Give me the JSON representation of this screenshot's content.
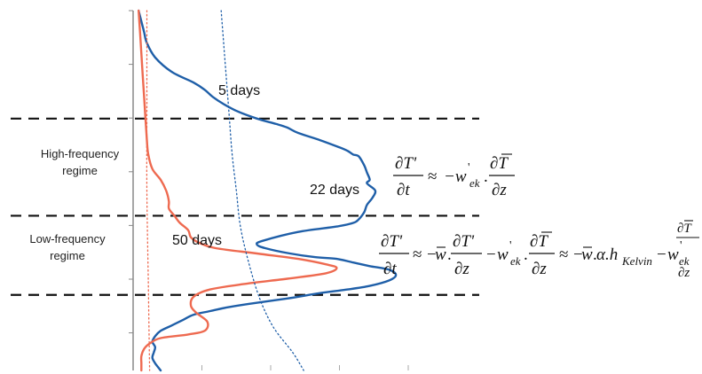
{
  "chart_data": {
    "type": "line",
    "title": "",
    "xlabel": "",
    "ylabel": "",
    "xlim": [
      0,
      1
    ],
    "ylim": [
      0,
      1
    ],
    "x_ticks": [
      0.25,
      0.5,
      0.75,
      1.0
    ],
    "grid": false,
    "series": [
      {
        "name": "",
        "color": "#1f5fa8",
        "style": "solid",
        "points": [
          [
            0.02,
            1.0
          ],
          [
            0.03,
            0.97
          ],
          [
            0.04,
            0.94
          ],
          [
            0.05,
            0.91
          ],
          [
            0.08,
            0.87
          ],
          [
            0.14,
            0.83
          ],
          [
            0.22,
            0.8
          ],
          [
            0.26,
            0.78
          ],
          [
            0.29,
            0.76
          ],
          [
            0.33,
            0.74
          ],
          [
            0.38,
            0.72
          ],
          [
            0.45,
            0.7
          ],
          [
            0.52,
            0.685
          ],
          [
            0.56,
            0.675
          ],
          [
            0.6,
            0.66
          ],
          [
            0.68,
            0.64
          ],
          [
            0.75,
            0.62
          ],
          [
            0.78,
            0.61
          ],
          [
            0.8,
            0.6
          ],
          [
            0.82,
            0.595
          ],
          [
            0.84,
            0.57
          ],
          [
            0.85,
            0.55
          ],
          [
            0.86,
            0.53
          ],
          [
            0.85,
            0.52
          ],
          [
            0.88,
            0.5
          ],
          [
            0.87,
            0.48
          ],
          [
            0.85,
            0.46
          ],
          [
            0.84,
            0.44
          ],
          [
            0.82,
            0.42
          ],
          [
            0.8,
            0.41
          ],
          [
            0.74,
            0.4
          ],
          [
            0.6,
            0.385
          ],
          [
            0.47,
            0.36
          ],
          [
            0.45,
            0.35
          ],
          [
            0.48,
            0.34
          ],
          [
            0.57,
            0.325
          ],
          [
            0.66,
            0.315
          ],
          [
            0.74,
            0.31
          ],
          [
            0.8,
            0.3
          ],
          [
            0.86,
            0.29
          ],
          [
            0.93,
            0.28
          ],
          [
            0.955,
            0.265
          ],
          [
            0.93,
            0.25
          ],
          [
            0.86,
            0.235
          ],
          [
            0.78,
            0.225
          ],
          [
            0.68,
            0.215
          ],
          [
            0.56,
            0.2
          ],
          [
            0.42,
            0.185
          ],
          [
            0.34,
            0.175
          ],
          [
            0.28,
            0.165
          ],
          [
            0.22,
            0.155
          ],
          [
            0.18,
            0.14
          ],
          [
            0.14,
            0.125
          ],
          [
            0.1,
            0.11
          ],
          [
            0.08,
            0.095
          ],
          [
            0.07,
            0.08
          ],
          [
            0.08,
            0.065
          ],
          [
            0.075,
            0.05
          ],
          [
            0.07,
            0.035
          ],
          [
            0.08,
            0.02
          ],
          [
            0.1,
            0.0
          ]
        ]
      },
      {
        "name": "",
        "color": "#ee6a50",
        "style": "solid",
        "points": [
          [
            0.02,
            1.0
          ],
          [
            0.025,
            0.94
          ],
          [
            0.03,
            0.88
          ],
          [
            0.035,
            0.82
          ],
          [
            0.04,
            0.76
          ],
          [
            0.045,
            0.7
          ],
          [
            0.05,
            0.64
          ],
          [
            0.055,
            0.6
          ],
          [
            0.07,
            0.56
          ],
          [
            0.1,
            0.53
          ],
          [
            0.12,
            0.5
          ],
          [
            0.13,
            0.47
          ],
          [
            0.13,
            0.45
          ],
          [
            0.15,
            0.43
          ],
          [
            0.17,
            0.41
          ],
          [
            0.2,
            0.39
          ],
          [
            0.21,
            0.37
          ],
          [
            0.24,
            0.355
          ],
          [
            0.3,
            0.34
          ],
          [
            0.45,
            0.325
          ],
          [
            0.6,
            0.31
          ],
          [
            0.7,
            0.295
          ],
          [
            0.74,
            0.285
          ],
          [
            0.7,
            0.27
          ],
          [
            0.56,
            0.255
          ],
          [
            0.4,
            0.24
          ],
          [
            0.28,
            0.225
          ],
          [
            0.22,
            0.205
          ],
          [
            0.21,
            0.18
          ],
          [
            0.23,
            0.16
          ],
          [
            0.27,
            0.135
          ],
          [
            0.26,
            0.11
          ],
          [
            0.2,
            0.1
          ],
          [
            0.1,
            0.09
          ],
          [
            0.06,
            0.075
          ],
          [
            0.04,
            0.06
          ],
          [
            0.03,
            0.04
          ],
          [
            0.03,
            0.02
          ],
          [
            0.03,
            0.0
          ]
        ]
      },
      {
        "name": "",
        "color": "#1f5fa8",
        "style": "dotted",
        "points": [
          [
            0.32,
            1.0
          ],
          [
            0.33,
            0.9
          ],
          [
            0.34,
            0.8
          ],
          [
            0.35,
            0.7
          ],
          [
            0.36,
            0.6
          ],
          [
            0.375,
            0.5
          ],
          [
            0.39,
            0.4
          ],
          [
            0.42,
            0.3
          ],
          [
            0.46,
            0.2
          ],
          [
            0.51,
            0.12
          ],
          [
            0.58,
            0.05
          ],
          [
            0.62,
            0.0
          ]
        ]
      },
      {
        "name": "",
        "color": "#ee6a50",
        "style": "dotted",
        "points": [
          [
            0.05,
            1.0
          ],
          [
            0.05,
            0.75
          ],
          [
            0.05,
            0.5
          ],
          [
            0.055,
            0.25
          ],
          [
            0.06,
            0.0
          ]
        ]
      }
    ],
    "regime_boundaries": [
      0.7,
      0.43,
      0.21
    ],
    "annotations": {
      "five_days": "5 days",
      "twenty_two_days": "22 days",
      "fifty_days": "50 days",
      "high_regime_1": "High-frequency",
      "high_regime_2": "regime",
      "low_regime_1": "Low-frequency",
      "low_regime_2": "regime"
    },
    "equations": {
      "high": {
        "lhs_num": "∂T'",
        "lhs_den": "∂t",
        "approx": "≈",
        "minus_w": "−w",
        "prime": "'",
        "ek": "ek",
        "dot": ".",
        "rhs_num": "∂T",
        "rhs_den": "∂z"
      },
      "low": {
        "lhs_num": "∂T'",
        "lhs_den": "∂t",
        "approx": "≈",
        "minus": "−",
        "w": "w",
        "dot": ".",
        "t2_num": "∂T'",
        "t2_den": "∂z",
        "ek": "ek",
        "prime": "'",
        "t3_num": "∂T",
        "t3_den": "∂z",
        "approx2": "≈",
        "alpha_h": "α.h",
        "kelvin": "Kelvin",
        "t4_num": "∂T",
        "t4_den": "∂z"
      }
    }
  }
}
